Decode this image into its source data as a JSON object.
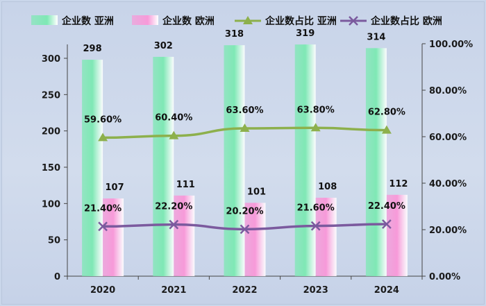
{
  "chart_data": {
    "type": "bar",
    "title": "",
    "categories": [
      "2020",
      "2021",
      "2022",
      "2023",
      "2024"
    ],
    "series": [
      {
        "name": "企业数 亚洲",
        "type": "bar",
        "axis": "left",
        "values": [
          298,
          302,
          318,
          319,
          314
        ],
        "labels": [
          "298",
          "302",
          "318",
          "319",
          "314"
        ],
        "color": "#7fe8b5"
      },
      {
        "name": "企业数 欧洲",
        "type": "bar",
        "axis": "left",
        "values": [
          107,
          111,
          101,
          108,
          112
        ],
        "labels": [
          "107",
          "111",
          "101",
          "108",
          "112"
        ],
        "color": "#f79ad9"
      },
      {
        "name": "企业数占比 亚洲",
        "type": "line",
        "axis": "right",
        "marker": "triangle",
        "values": [
          59.6,
          60.4,
          63.6,
          63.8,
          62.8
        ],
        "labels": [
          "59.60%",
          "60.40%",
          "63.60%",
          "63.80%",
          "62.80%"
        ],
        "color": "#8db04c"
      },
      {
        "name": "企业数占比 欧洲",
        "type": "line",
        "axis": "right",
        "marker": "x",
        "values": [
          21.4,
          22.2,
          20.2,
          21.6,
          22.4
        ],
        "labels": [
          "21.40%",
          "22.20%",
          "20.20%",
          "21.60%",
          "22.40%"
        ],
        "color": "#7b5a9e"
      }
    ],
    "y_left": {
      "min": 0,
      "max": 300,
      "ticks": [
        0,
        50,
        100,
        150,
        200,
        250,
        300
      ],
      "tick_labels": [
        "0",
        "50",
        "100",
        "150",
        "200",
        "250",
        "300"
      ]
    },
    "y_right": {
      "min": 0,
      "max": 100,
      "ticks": [
        0,
        20,
        40,
        60,
        80,
        100
      ],
      "tick_labels": [
        "0.00%",
        "20.00%",
        "40.00%",
        "60.00%",
        "80.00%",
        "100.00%"
      ]
    },
    "grid": false,
    "legend_position": "top"
  }
}
